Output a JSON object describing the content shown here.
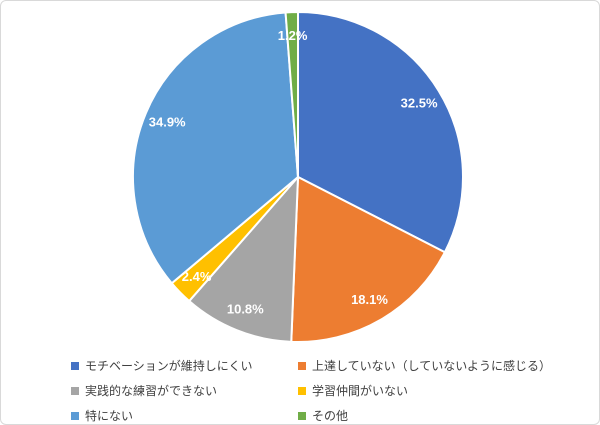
{
  "chart_data": {
    "type": "pie",
    "categories": [
      "モチベーションが維持しにくい",
      "上達していない（していないように感じる）",
      "実践的な練習ができない",
      "学習仲間がいない",
      "特にない",
      "その他"
    ],
    "values": [
      32.5,
      18.1,
      10.8,
      2.4,
      34.9,
      1.2
    ],
    "value_labels": [
      "32.5%",
      "18.1%",
      "10.8%",
      "2.4%",
      "34.9%",
      "1.2%"
    ],
    "colors": [
      "#4472C4",
      "#ED7D31",
      "#A5A5A5",
      "#FFC000",
      "#5B9BD5",
      "#70AD47"
    ],
    "title": "",
    "start_angle_deg": 0,
    "direction": "clockwise",
    "slice_border_color": "#FFFFFF",
    "data_label_color": "#FFFFFF",
    "legend_position": "bottom",
    "legend_text_color": "#404040",
    "frame_border_color": "#D9D9D9"
  }
}
